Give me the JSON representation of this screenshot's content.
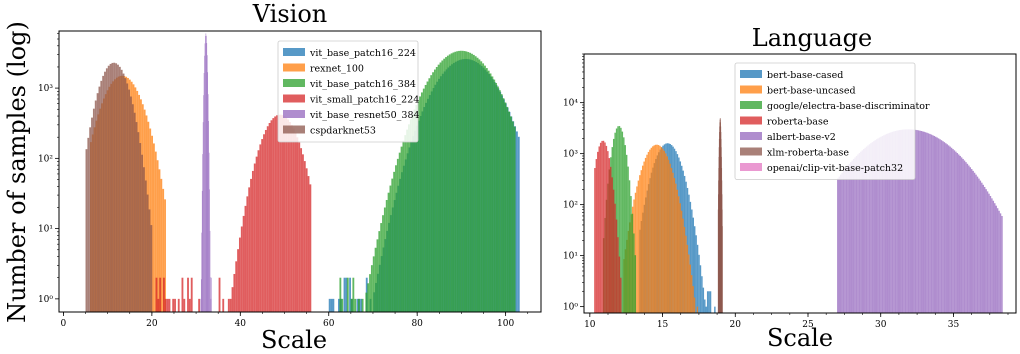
{
  "chart_data": [
    {
      "type": "histogram",
      "title": "Vision",
      "xlabel": "Scale",
      "ylabel": "Number of samples (log)",
      "yscale": "log",
      "xlim": [
        -1,
        108
      ],
      "ylim": [
        0.65,
        6500
      ],
      "xticks": [
        0,
        20,
        40,
        60,
        80,
        100
      ],
      "xtick_labels": [
        "0",
        "20",
        "40",
        "60",
        "80",
        "100"
      ],
      "yticks": [
        1,
        10,
        100,
        1000
      ],
      "ytick_labels": [
        "10⁰",
        "10¹",
        "10²",
        "10³"
      ],
      "legend_position": "top-center",
      "series": [
        {
          "name": "vit_base_patch16_224",
          "color": "#1f77b4",
          "dist": "gauss",
          "mu": 91.0,
          "sigma": 5.3,
          "peak": 2600,
          "lo": 60,
          "hi": 103
        },
        {
          "name": "rexnet_100",
          "color": "#ff7f0e",
          "dist": "gauss",
          "mu": 13.3,
          "sigma": 3.4,
          "peak": 1500,
          "lo": 6,
          "hi": 23
        },
        {
          "name": "vit_base_patch16_384",
          "color": "#2ca02c",
          "dist": "gauss",
          "mu": 90.0,
          "sigma": 5.4,
          "peak": 3400,
          "lo": 62,
          "hi": 102
        },
        {
          "name": "vit_small_patch16_224",
          "color": "#d62728",
          "dist": "gauss",
          "mu": 49.0,
          "sigma": 3.2,
          "peak": 420,
          "lo": 20,
          "hi": 56
        },
        {
          "name": "vit_base_resnet50_384",
          "color": "#9467bd",
          "dist": "spike",
          "mu": 32.2,
          "sigma": 0.26,
          "peak": 6000,
          "lo": 31,
          "hi": 33.5
        },
        {
          "name": "cspdarknet53",
          "color": "#8c564b",
          "dist": "gauss",
          "mu": 11.4,
          "sigma": 2.6,
          "peak": 2300,
          "lo": 5,
          "hi": 20
        }
      ]
    },
    {
      "type": "histogram",
      "title": "Language",
      "xlabel": "Scale",
      "ylabel": "",
      "yscale": "log",
      "xlim": [
        9.6,
        39.3
      ],
      "ylim": [
        0.75,
        90000
      ],
      "xticks": [
        10,
        15,
        20,
        25,
        30,
        35
      ],
      "xtick_labels": [
        "10",
        "15",
        "20",
        "25",
        "30",
        "35"
      ],
      "yticks": [
        1,
        10,
        100,
        1000,
        10000
      ],
      "ytick_labels": [
        "10⁰",
        "10¹",
        "10²",
        "10³",
        "10⁴"
      ],
      "legend_position": "top-center",
      "series": [
        {
          "name": "bert-base-cased",
          "color": "#1f77b4",
          "dist": "gauss",
          "mu": 15.35,
          "sigma": 0.68,
          "peak": 1600,
          "lo": 13.4,
          "hi": 18.6
        },
        {
          "name": "bert-base-uncased",
          "color": "#ff7f0e",
          "dist": "gauss",
          "mu": 14.6,
          "sigma": 0.7,
          "peak": 1500,
          "lo": 12.3,
          "hi": 17.6
        },
        {
          "name": "google/electra-base-discriminator",
          "color": "#2ca02c",
          "dist": "gauss",
          "mu": 12.0,
          "sigma": 0.33,
          "peak": 3500,
          "lo": 10.9,
          "hi": 13.1
        },
        {
          "name": "roberta-base",
          "color": "#d62728",
          "dist": "gauss",
          "mu": 10.9,
          "sigma": 0.35,
          "peak": 1800,
          "lo": 10.3,
          "hi": 12.1
        },
        {
          "name": "albert-base-v2",
          "color": "#9467bd",
          "dist": "gauss",
          "mu": 31.9,
          "sigma": 2.3,
          "peak": 3000,
          "lo": 27.0,
          "hi": 38.3
        },
        {
          "name": "xlm-roberta-base",
          "color": "#8c564b",
          "dist": "spike",
          "mu": 18.95,
          "sigma": 0.05,
          "peak": 5000,
          "lo": 18.8,
          "hi": 19.1
        },
        {
          "name": "openai/clip-vit-base-patch32",
          "color": "#e377c2",
          "dist": "none",
          "mu": 0,
          "sigma": 1,
          "peak": 0,
          "lo": 0,
          "hi": 0
        }
      ]
    }
  ]
}
